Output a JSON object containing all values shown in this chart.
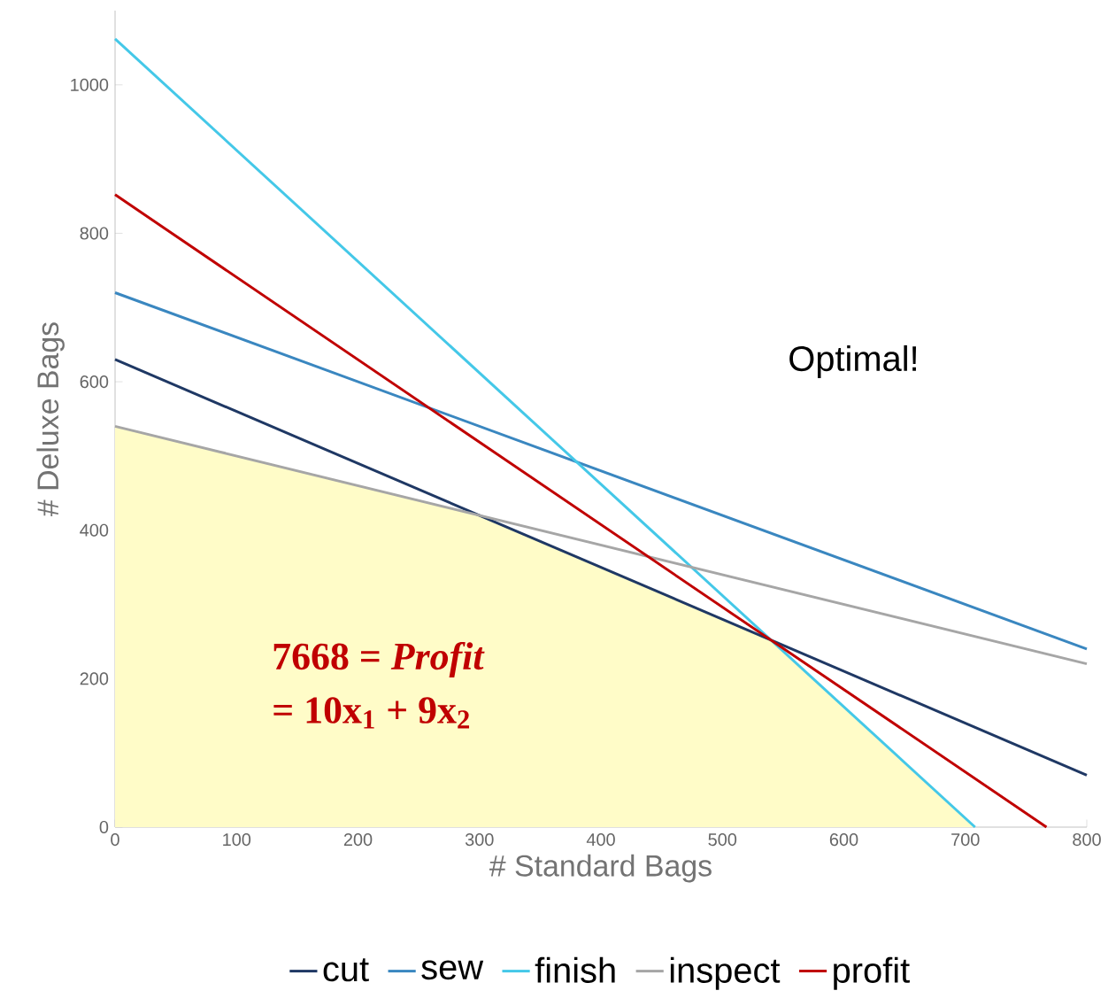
{
  "chart_data": {
    "type": "line",
    "xlabel": "# Standard Bags",
    "ylabel": "# Deluxe Bags",
    "xlim": [
      0,
      800
    ],
    "ylim": [
      0,
      1100
    ],
    "xticks": [
      0,
      100,
      200,
      300,
      400,
      500,
      600,
      700,
      800
    ],
    "yticks": [
      0,
      200,
      400,
      600,
      800,
      1000
    ],
    "grid": false,
    "legend": "bottom",
    "marker": "none",
    "line_style": "solid",
    "series": [
      {
        "type": "area",
        "color": "#fffcc8",
        "x": [
          0,
          300,
          540,
          708
        ],
        "values": [
          540,
          420,
          252,
          0
        ]
      },
      {
        "name": "cut",
        "color": "#1f3864",
        "x": [
          0,
          800
        ],
        "values": [
          630,
          70
        ]
      },
      {
        "name": "sew",
        "color": "#3a87c0",
        "x": [
          0,
          800
        ],
        "values": [
          720,
          240
        ]
      },
      {
        "name": "finish",
        "color": "#44c8e8",
        "x": [
          0,
          708
        ],
        "values": [
          1062,
          0
        ]
      },
      {
        "name": "inspect",
        "color": "#a6a6a6",
        "x": [
          0,
          800
        ],
        "values": [
          540,
          220
        ]
      },
      {
        "name": "profit",
        "color": "#c00000",
        "x": [
          0,
          766.8
        ],
        "values": [
          852,
          0
        ]
      }
    ],
    "annotations": [
      "Optimal!",
      "7668 = *Profit*",
      "= 10x$_{1}$ + 9x$_{2}$"
    ]
  }
}
